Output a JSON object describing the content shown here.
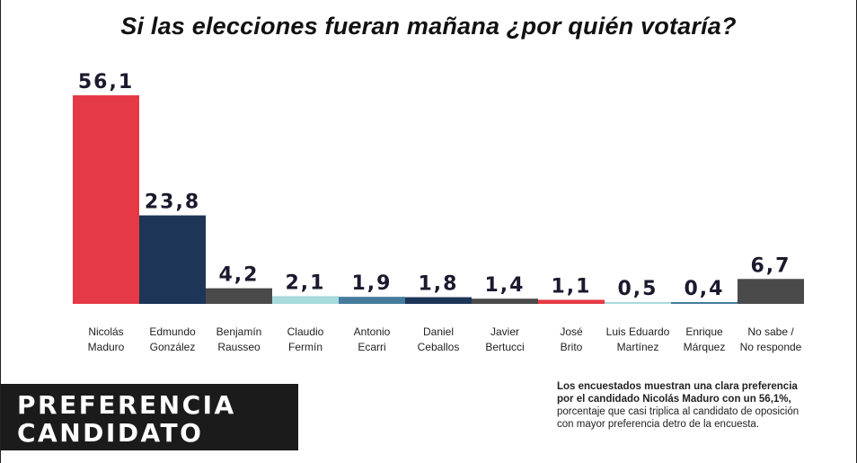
{
  "title": "Si las elecciones fueran mañana ¿por quién votaría?",
  "badge": {
    "line1": "PREFERENCIA",
    "line2": "CANDIDATO"
  },
  "note": {
    "bold_line1": "Los encuestados muestran una clara preferencia",
    "bold_line2": "por el candidado Nicolás Maduro con un 56,1%,",
    "line3": "porcentaje que casi triplica al candidato de oposición",
    "line4": "con mayor preferencia detro de la encuesta."
  },
  "chart_data": {
    "type": "bar",
    "title": "Si las elecciones fueran mañana ¿por quién votaría?",
    "ylim": [
      0,
      56.1
    ],
    "categories": [
      [
        "Nicolás",
        "Maduro"
      ],
      [
        "Edmundo",
        "González"
      ],
      [
        "Benjamín",
        "Rausseo"
      ],
      [
        "Claudio",
        "Fermín"
      ],
      [
        "Antonio",
        "Ecarri"
      ],
      [
        "Daniel",
        "Ceballos"
      ],
      [
        "Javier",
        "Bertucci"
      ],
      [
        "José",
        "Brito"
      ],
      [
        "Luis Eduardo",
        "Martínez"
      ],
      [
        "Enrique",
        "Márquez"
      ],
      [
        "No sabe /",
        "No responde"
      ]
    ],
    "values": [
      56.1,
      23.8,
      4.2,
      2.1,
      1.9,
      1.8,
      1.4,
      1.1,
      0.5,
      0.4,
      6.7
    ],
    "value_labels": [
      "56,1",
      "23,8",
      "4,2",
      "2,1",
      "1,9",
      "1,8",
      "1,4",
      "1,1",
      "0,5",
      "0,4",
      "6,7"
    ],
    "colors": [
      "#e63946",
      "#1d3557",
      "#4a4a4a",
      "#a8dadc",
      "#457b9d",
      "#1d3557",
      "#4a4a4a",
      "#e63946",
      "#a8dadc",
      "#457b9d",
      "#4a4a4a"
    ]
  }
}
